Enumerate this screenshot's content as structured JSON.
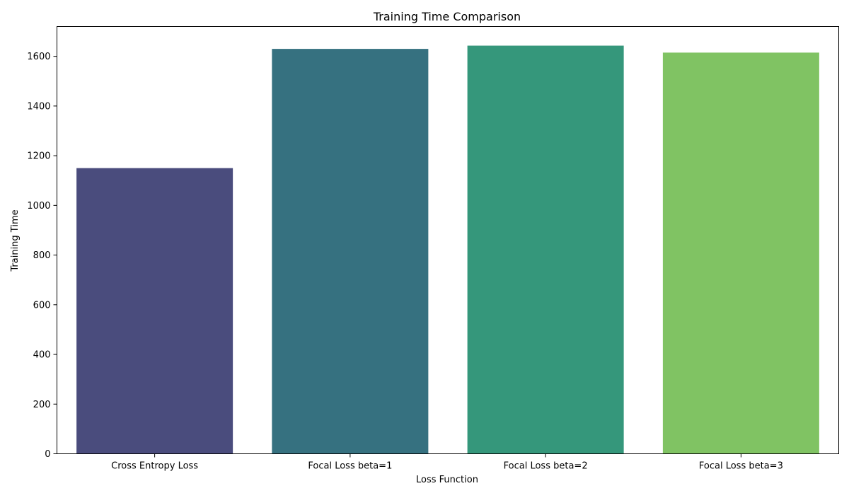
{
  "chart_data": {
    "type": "bar",
    "title": "Training Time Comparison",
    "xlabel": "Loss Function",
    "ylabel": "Training Time",
    "categories": [
      "Cross Entropy Loss",
      "Focal Loss beta=1",
      "Focal Loss beta=2",
      "Focal Loss beta=3"
    ],
    "values": [
      1150,
      1630,
      1643,
      1615
    ],
    "colors": [
      "#4a4c7d",
      "#367180",
      "#35977b",
      "#80c363"
    ],
    "ylim": [
      0,
      1720
    ],
    "yticks": [
      0,
      200,
      400,
      600,
      800,
      1000,
      1200,
      1400,
      1600
    ],
    "grid": false,
    "legend": false
  }
}
